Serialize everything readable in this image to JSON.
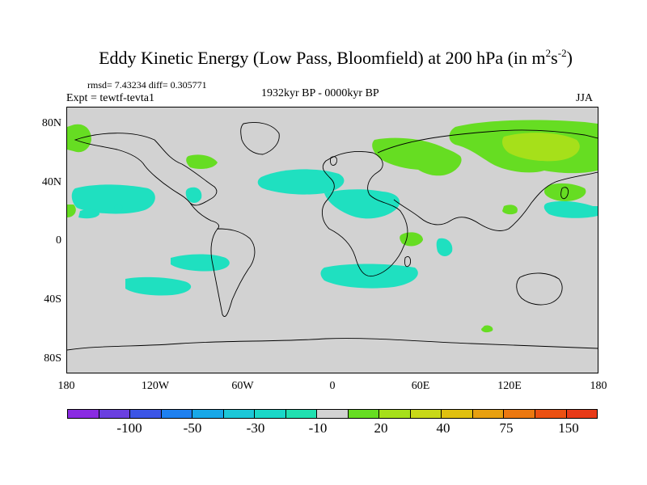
{
  "title": {
    "main": "Eddy Kinetic Energy (Low Pass, Bloomfield) at 200 hPa (in m",
    "sup1": "2",
    "mid": "s",
    "sup2": "-2",
    "close": ")"
  },
  "stats": {
    "rmsd": "rmsd= 7.43234 diff= 0.305771"
  },
  "experiment": "Expt = tewtf-tevta1",
  "period": "1932kyr BP - 0000kyr BP",
  "season": "JJA",
  "map": {
    "lat_labels": [
      "80N",
      "40N",
      "0",
      "40S",
      "80S"
    ],
    "lon_labels": [
      "180",
      "120W",
      "60W",
      "0",
      "60E",
      "120E",
      "180"
    ],
    "colors": {
      "background": "#d2d2d2",
      "teal": "#1fe0c0",
      "green": "#66dd22",
      "yellowgreen": "#a6e01a"
    }
  },
  "colorbar": {
    "colors": [
      "#8a2be2",
      "#6a3fe0",
      "#3c55e6",
      "#1e80f0",
      "#18a8e8",
      "#1cc8d8",
      "#1ad8c8",
      "#20e0b0",
      "#d2d2d2",
      "#66dd22",
      "#a6e01a",
      "#c8d818",
      "#e0c010",
      "#e8a010",
      "#ec7810",
      "#ec5012",
      "#e83a18"
    ],
    "labels": [
      "-100",
      "-50",
      "-30",
      "-10",
      "20",
      "40",
      "75",
      "150"
    ]
  }
}
